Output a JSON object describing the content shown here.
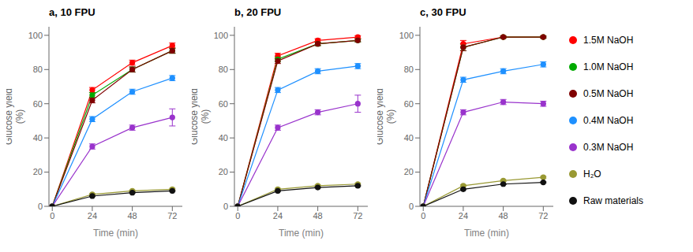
{
  "chart_data": [
    {
      "type": "line",
      "title": "a, 10 FPU",
      "x": [
        0,
        24,
        48,
        72
      ],
      "xlabel": "Time (min)",
      "ylabel": "Glucose yield\n(%)",
      "xlim": [
        -2,
        78
      ],
      "ylim": [
        0,
        105
      ],
      "xticks": [
        0,
        24,
        48,
        72
      ],
      "yticks": [
        0,
        20,
        40,
        60,
        80,
        100
      ],
      "grid": false,
      "marker": "circle",
      "series": [
        {
          "name": "1.5M NaOH",
          "color": "#FF0000",
          "values": [
            0,
            68,
            84,
            94
          ],
          "errors": [
            0,
            1.5,
            1.5,
            1.5
          ]
        },
        {
          "name": "1.0M NaOH",
          "color": "#00AA00",
          "values": [
            0,
            65,
            80,
            91
          ],
          "errors": [
            0,
            1.5,
            1.5,
            1.5
          ]
        },
        {
          "name": "0.5M NaOH",
          "color": "#800000",
          "values": [
            0,
            62,
            80,
            91
          ],
          "errors": [
            0,
            1.5,
            1.5,
            1.5
          ]
        },
        {
          "name": "0.4M NaOH",
          "color": "#1E90FF",
          "values": [
            0,
            51,
            67,
            75
          ],
          "errors": [
            0,
            1.5,
            1.5,
            1.5
          ]
        },
        {
          "name": "0.3M NaOH",
          "color": "#9933CC",
          "values": [
            0,
            35,
            46,
            52
          ],
          "errors": [
            0,
            1.5,
            1.5,
            5.0
          ]
        },
        {
          "name": "H₂O",
          "color": "#999933",
          "values": [
            0,
            7,
            9,
            10
          ],
          "errors": [
            0,
            0.5,
            0.5,
            0.5
          ]
        },
        {
          "name": "Raw materials",
          "color": "#111111",
          "values": [
            0,
            6,
            8,
            9
          ],
          "errors": [
            0,
            0.3,
            0.3,
            0.3
          ]
        }
      ]
    },
    {
      "type": "line",
      "title": "b, 20 FPU",
      "x": [
        0,
        24,
        48,
        72
      ],
      "xlabel": "Time (min)",
      "ylabel": "Glucose yield\n(%)",
      "xlim": [
        -2,
        78
      ],
      "ylim": [
        0,
        105
      ],
      "xticks": [
        0,
        24,
        48,
        72
      ],
      "yticks": [
        0,
        20,
        40,
        60,
        80,
        100
      ],
      "grid": false,
      "marker": "circle",
      "series": [
        {
          "name": "1.5M NaOH",
          "color": "#FF0000",
          "values": [
            0,
            88,
            97,
            99
          ],
          "errors": [
            0,
            1.5,
            1.0,
            0.8
          ]
        },
        {
          "name": "1.0M NaOH",
          "color": "#00AA00",
          "values": [
            0,
            86,
            95,
            97
          ],
          "errors": [
            0,
            1.5,
            1.0,
            0.8
          ]
        },
        {
          "name": "0.5M NaOH",
          "color": "#800000",
          "values": [
            0,
            85,
            95,
            97
          ],
          "errors": [
            0,
            1.5,
            1.0,
            0.8
          ]
        },
        {
          "name": "0.4M NaOH",
          "color": "#1E90FF",
          "values": [
            0,
            68,
            79,
            82
          ],
          "errors": [
            0,
            1.5,
            1.5,
            1.5
          ]
        },
        {
          "name": "0.3M NaOH",
          "color": "#9933CC",
          "values": [
            0,
            46,
            55,
            60
          ],
          "errors": [
            0,
            1.5,
            1.5,
            5.0
          ]
        },
        {
          "name": "H₂O",
          "color": "#999933",
          "values": [
            0,
            10,
            12,
            13
          ],
          "errors": [
            0,
            0.5,
            0.5,
            0.5
          ]
        },
        {
          "name": "Raw materials",
          "color": "#111111",
          "values": [
            0,
            9,
            11,
            12
          ],
          "errors": [
            0,
            0.3,
            0.3,
            0.3
          ]
        }
      ]
    },
    {
      "type": "line",
      "title": "c, 30 FPU",
      "x": [
        0,
        24,
        48,
        72
      ],
      "xlabel": "Time (min)",
      "ylabel": "Glucose yield\n(%)",
      "xlim": [
        -2,
        78
      ],
      "ylim": [
        0,
        105
      ],
      "xticks": [
        0,
        24,
        48,
        72
      ],
      "yticks": [
        0,
        20,
        40,
        60,
        80,
        100
      ],
      "grid": false,
      "marker": "circle",
      "legend": "right",
      "series": [
        {
          "name": "1.5M NaOH",
          "color": "#FF0000",
          "values": [
            0,
            95,
            99,
            99
          ],
          "errors": [
            0,
            2.0,
            0.5,
            0.5
          ]
        },
        {
          "name": "1.0M NaOH",
          "color": "#00AA00",
          "values": [
            0,
            93,
            99,
            99
          ],
          "errors": [
            0,
            2.0,
            0.5,
            0.5
          ]
        },
        {
          "name": "0.5M NaOH",
          "color": "#800000",
          "values": [
            0,
            93,
            99,
            99
          ],
          "errors": [
            0,
            2.0,
            0.5,
            0.5
          ]
        },
        {
          "name": "0.4M NaOH",
          "color": "#1E90FF",
          "values": [
            0,
            74,
            79,
            83
          ],
          "errors": [
            0,
            1.5,
            1.5,
            1.5
          ]
        },
        {
          "name": "0.3M NaOH",
          "color": "#9933CC",
          "values": [
            0,
            55,
            61,
            60
          ],
          "errors": [
            0,
            1.5,
            1.5,
            1.5
          ]
        },
        {
          "name": "H₂O",
          "color": "#999933",
          "values": [
            0,
            12,
            15,
            17
          ],
          "errors": [
            0,
            0.5,
            0.5,
            0.5
          ]
        },
        {
          "name": "Raw materials",
          "color": "#111111",
          "values": [
            0,
            10,
            13,
            14
          ],
          "errors": [
            0,
            0.3,
            0.3,
            0.3
          ]
        }
      ]
    }
  ]
}
